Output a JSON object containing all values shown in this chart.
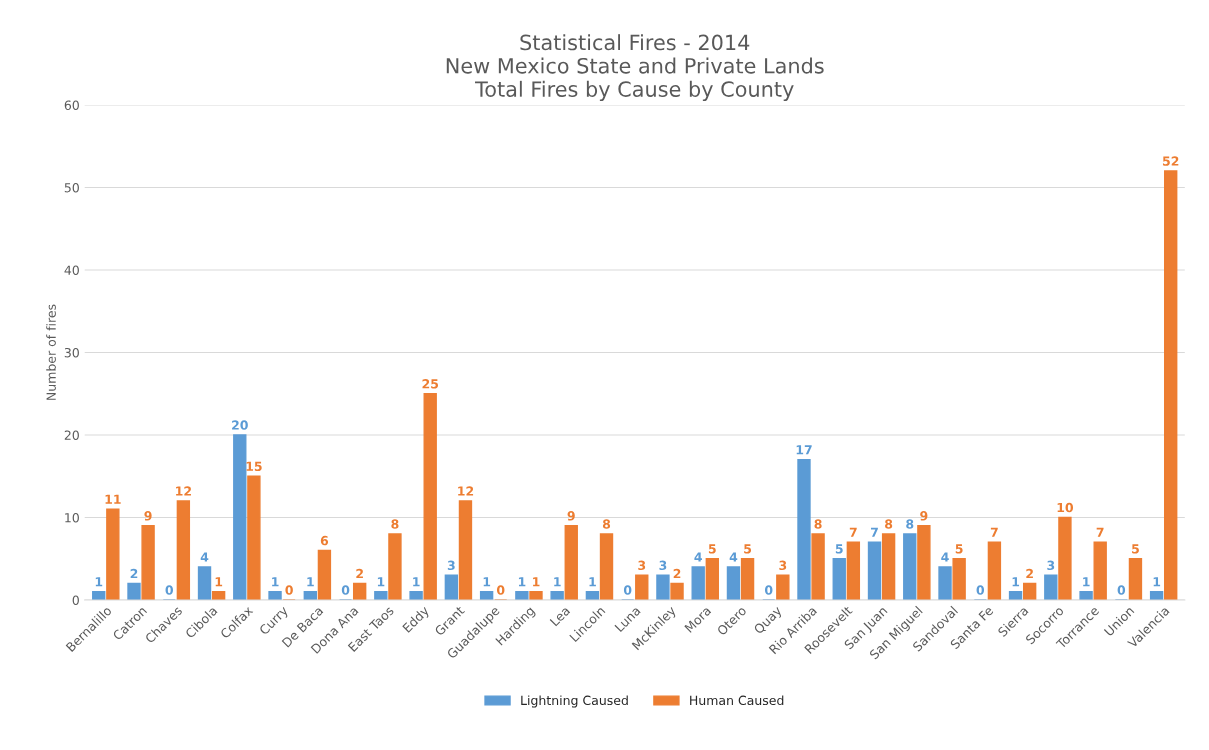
{
  "chart_data": {
    "type": "bar",
    "title": "Statistical Fires - 2014\nNew Mexico State and Private Lands\nTotal Fires by Cause by County",
    "ylabel": "Number of fires",
    "categories": [
      "Bernalillo",
      "Catron",
      "Chaves",
      "Cibola",
      "Colfax",
      "Curry",
      "De Baca",
      "Dona Ana",
      "East Taos",
      "Eddy",
      "Grant",
      "Guadalupe",
      "Harding",
      "Lea",
      "Lincoln",
      "Luna",
      "McKinley",
      "Mora",
      "Otero",
      "Quay",
      "Rio Arriba",
      "Roosevelt",
      "San Juan",
      "San Miguel",
      "Sandoval",
      "Santa Fe",
      "Sierra",
      "Socorro",
      "Torrance",
      "Union",
      "Valencia"
    ],
    "series": [
      {
        "name": "Lightning Caused",
        "color": "#5b9bd5",
        "values": [
          1,
          2,
          0,
          4,
          20,
          1,
          1,
          0,
          1,
          1,
          3,
          1,
          1,
          1,
          1,
          0,
          3,
          4,
          4,
          0,
          17,
          5,
          7,
          8,
          4,
          0,
          1,
          3,
          1,
          0,
          1
        ]
      },
      {
        "name": "Human Caused",
        "color": "#ed7d31",
        "values": [
          11,
          9,
          12,
          1,
          15,
          0,
          6,
          2,
          8,
          25,
          12,
          0,
          1,
          9,
          8,
          3,
          2,
          5,
          5,
          3,
          8,
          7,
          8,
          9,
          5,
          7,
          2,
          10,
          7,
          5,
          52
        ]
      }
    ],
    "ylim": [
      0,
      60
    ],
    "yticks": [
      0,
      10,
      20,
      30,
      40,
      50,
      60
    ],
    "grid": "y",
    "legend": "bottom",
    "data_labels": true
  }
}
